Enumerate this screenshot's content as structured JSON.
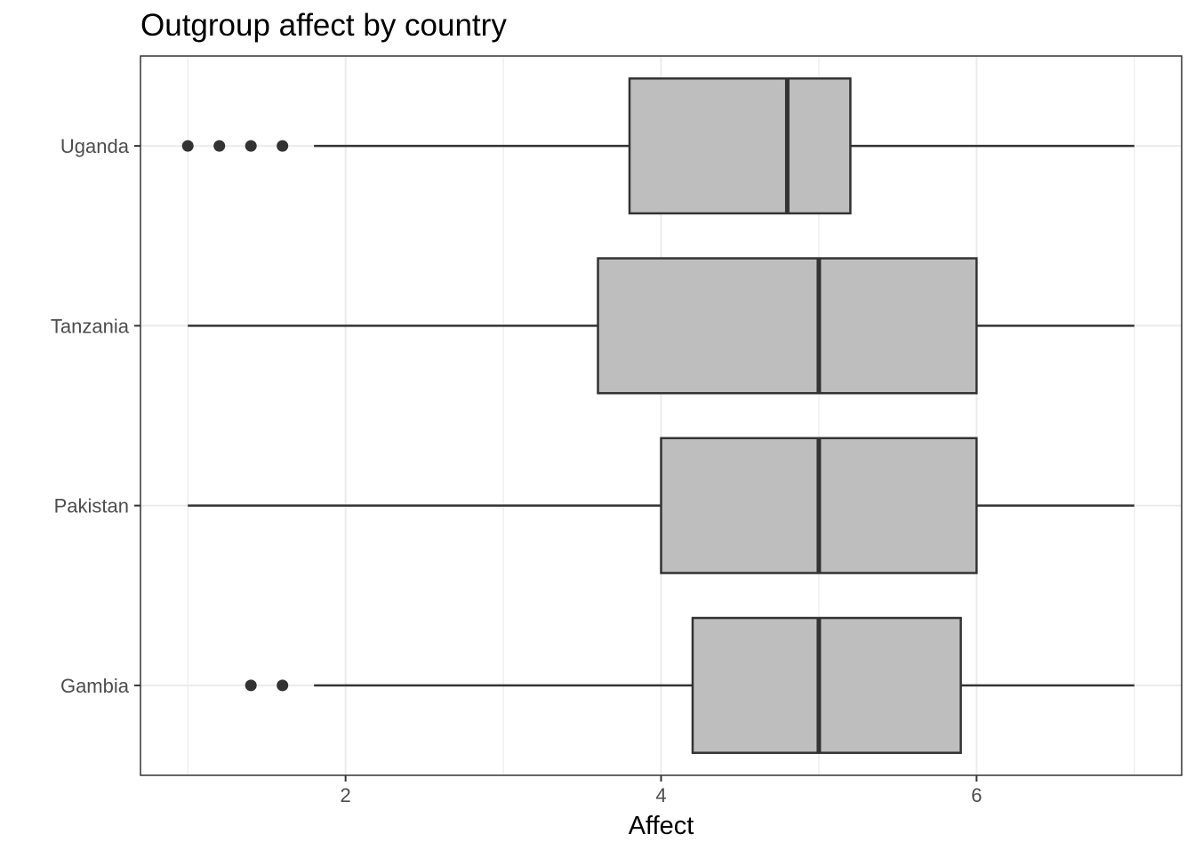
{
  "chart_data": {
    "type": "boxplot",
    "orientation": "horizontal",
    "title": "Outgroup affect by country",
    "xlabel": "Affect",
    "ylabel": "",
    "xlim": [
      0.7,
      7.3
    ],
    "x_ticks": [
      2,
      4,
      6
    ],
    "grid": true,
    "categories": [
      "Gambia",
      "Pakistan",
      "Tanzania",
      "Uganda"
    ],
    "boxes": [
      {
        "category": "Gambia",
        "whisker_low": 1.8,
        "q1": 4.2,
        "median": 5.0,
        "q3": 5.9,
        "whisker_high": 7.0,
        "outliers": [
          1.4,
          1.6
        ]
      },
      {
        "category": "Pakistan",
        "whisker_low": 1.0,
        "q1": 4.0,
        "median": 5.0,
        "q3": 6.0,
        "whisker_high": 7.0,
        "outliers": []
      },
      {
        "category": "Tanzania",
        "whisker_low": 1.0,
        "q1": 3.6,
        "median": 5.0,
        "q3": 6.0,
        "whisker_high": 7.0,
        "outliers": []
      },
      {
        "category": "Uganda",
        "whisker_low": 1.8,
        "q1": 3.8,
        "median": 4.8,
        "q3": 5.2,
        "whisker_high": 7.0,
        "outliers": [
          1.0,
          1.2,
          1.4,
          1.6
        ]
      }
    ],
    "colors": {
      "box_fill": "#bebebe",
      "box_stroke": "#333333",
      "grid": "#ebebeb",
      "panel_border": "#333333",
      "axis_text": "#4d4d4d",
      "title": "#000000"
    }
  }
}
